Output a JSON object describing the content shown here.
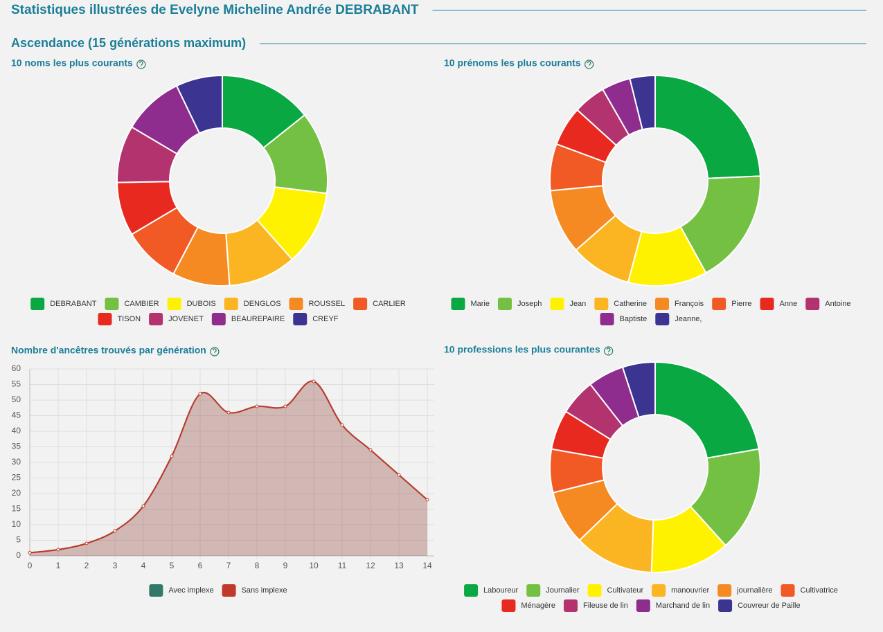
{
  "page_title": "Statistiques illustrées de Evelyne Micheline Andrée DEBRABANT",
  "section_title": "Ascendance (15 générations maximum)",
  "chart_data": [
    {
      "type": "pie",
      "title": "10 noms les plus courants",
      "categories": [
        "DEBRABANT",
        "CAMBIER",
        "DUBOIS",
        "DENGLOS",
        "ROUSSEL",
        "CARLIER",
        "TISON",
        "JOVENET",
        "BEAUREPAIRE",
        "CREYF"
      ],
      "values": [
        26,
        23,
        21,
        19,
        16,
        16,
        15,
        16,
        17,
        13
      ],
      "colors": [
        "#0aa843",
        "#74c043",
        "#fff200",
        "#fbb522",
        "#f58a23",
        "#f15a24",
        "#e8291f",
        "#b3336f",
        "#8e2d8e",
        "#3b3591"
      ]
    },
    {
      "type": "pie",
      "title": "10 prénoms les plus courants",
      "categories": [
        "Marie",
        "Joseph",
        "Jean",
        "Catherine",
        "François",
        "Pierre",
        "Anne",
        "Antoine",
        "Baptiste",
        "Jeanne,"
      ],
      "values": [
        44,
        32,
        22,
        17,
        18,
        13,
        11,
        9,
        8,
        7
      ],
      "colors": [
        "#0aa843",
        "#74c043",
        "#fff200",
        "#fbb522",
        "#f58a23",
        "#f15a24",
        "#e8291f",
        "#b3336f",
        "#8e2d8e",
        "#3b3591"
      ]
    },
    {
      "type": "line",
      "title": "Nombre d'ancêtres trouvés par génération",
      "x": [
        0,
        1,
        2,
        3,
        4,
        5,
        6,
        7,
        8,
        9,
        10,
        11,
        12,
        13,
        14
      ],
      "series": [
        {
          "name": "Avec implexe",
          "color": "#317a6a",
          "values": [
            1,
            2,
            4,
            8,
            16,
            32,
            52,
            46,
            48,
            48,
            56,
            42,
            34,
            26,
            18
          ]
        },
        {
          "name": "Sans implexe",
          "color": "#c0392b",
          "values": [
            1,
            2,
            4,
            8,
            16,
            32,
            52,
            46,
            48,
            48,
            56,
            42,
            34,
            26,
            18
          ]
        }
      ],
      "xlim": [
        0,
        14
      ],
      "xticks": [
        0,
        1,
        2,
        3,
        4,
        5,
        6,
        7,
        8,
        9,
        10,
        11,
        12,
        13,
        14
      ],
      "ylim": [
        0,
        60
      ],
      "yticks": [
        0,
        5,
        10,
        15,
        20,
        25,
        30,
        35,
        40,
        45,
        50,
        55,
        60
      ],
      "grid": true
    },
    {
      "type": "pie",
      "title": "10 professions les plus courantes",
      "categories": [
        "Laboureur",
        "Journalier",
        "Cultivateur",
        "manouvrier",
        "journalière",
        "Cultivatrice",
        "Ménagère",
        "Fileuse de lin",
        "Marchand de lin",
        "Couvreur de Paille"
      ],
      "values": [
        40,
        29,
        22,
        22,
        15,
        12,
        11,
        10,
        10,
        9
      ],
      "colors": [
        "#0aa843",
        "#74c043",
        "#fff200",
        "#fbb522",
        "#f58a23",
        "#f15a24",
        "#e8291f",
        "#b3336f",
        "#8e2d8e",
        "#3b3591"
      ]
    }
  ]
}
